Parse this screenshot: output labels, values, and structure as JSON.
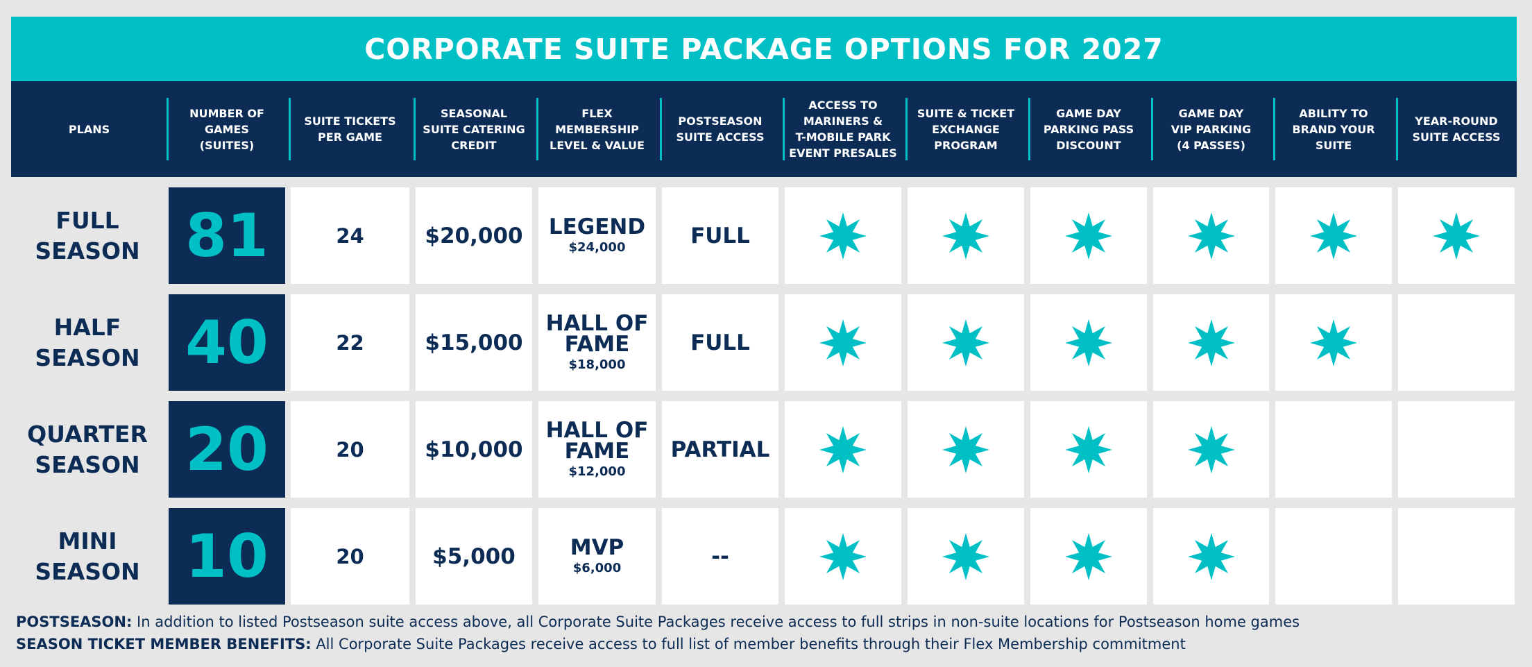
{
  "title": "CORPORATE SUITE PACKAGE OPTIONS FOR 2027",
  "colors": {
    "teal": "#00c0c6",
    "navy": "#0c2c56",
    "background": "#e6e6e6",
    "cell": "#ffffff"
  },
  "icon": "star-icon",
  "columns": [
    "PLANS",
    "NUMBER OF\nGAMES\n(SUITES)",
    "SUITE TICKETS\nPER GAME",
    "SEASONAL\nSUITE CATERING\nCREDIT",
    "FLEX\nMEMBERSHIP\nLEVEL & VALUE",
    "POSTSEASON\nSUITE ACCESS",
    "ACCESS TO\nMARINERS &\nT-MOBILE PARK\nEVENT PRESALES",
    "SUITE & TICKET\nEXCHANGE\nPROGRAM",
    "GAME DAY\nPARKING PASS\nDISCOUNT",
    "GAME DAY\nVIP PARKING\n(4 PASSES)",
    "ABILITY TO\nBRAND YOUR\nSUITE",
    "YEAR-ROUND\nSUITE ACCESS"
  ],
  "rows": [
    {
      "plan": "FULL\nSEASON",
      "games": "81",
      "tickets": "24",
      "catering": "$20,000",
      "flex_name": "LEGEND",
      "flex_value": "$24,000",
      "postseason": "FULL",
      "benefits": [
        true,
        true,
        true,
        true,
        true,
        true
      ]
    },
    {
      "plan": "HALF\nSEASON",
      "games": "40",
      "tickets": "22",
      "catering": "$15,000",
      "flex_name": "HALL OF\nFAME",
      "flex_value": "$18,000",
      "postseason": "FULL",
      "benefits": [
        true,
        true,
        true,
        true,
        true,
        false
      ]
    },
    {
      "plan": "QUARTER\nSEASON",
      "games": "20",
      "tickets": "20",
      "catering": "$10,000",
      "flex_name": "HALL OF\nFAME",
      "flex_value": "$12,000",
      "postseason": "PARTIAL",
      "benefits": [
        true,
        true,
        true,
        true,
        false,
        false
      ]
    },
    {
      "plan": "MINI\nSEASON",
      "games": "10",
      "tickets": "20",
      "catering": "$5,000",
      "flex_name": "MVP",
      "flex_value": "$6,000",
      "postseason": "--",
      "benefits": [
        true,
        true,
        true,
        true,
        false,
        false
      ]
    }
  ],
  "footer": {
    "postseason_label": "POSTSEASON:",
    "postseason_text": " In addition to listed Postseason suite access above, all Corporate Suite Packages receive access to full strips in non-suite locations for Postseason home games",
    "stm_label": "SEASON TICKET MEMBER BENEFITS:",
    "stm_text": " All Corporate Suite Packages receive access to full list of member benefits through their Flex Membership commitment"
  }
}
